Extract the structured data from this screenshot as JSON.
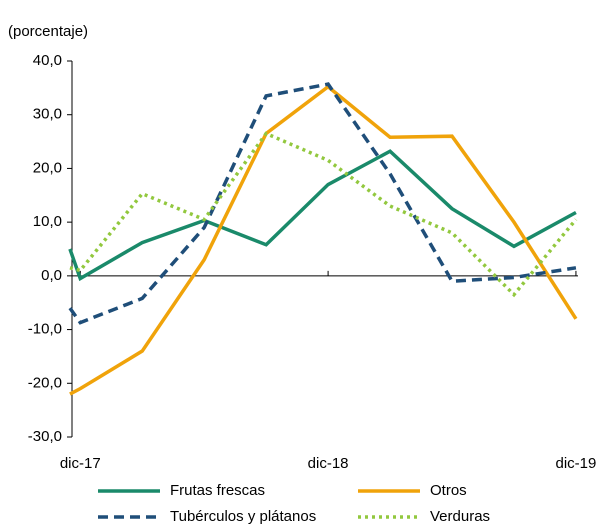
{
  "chart_data": {
    "type": "line",
    "y_label": "(porcentaje)",
    "x": [
      -0.5,
      0,
      3,
      6,
      9,
      12,
      15,
      18,
      21,
      24
    ],
    "xlim": [
      -0.4,
      24.1
    ],
    "xticks": [
      {
        "value": 0,
        "label": "dic-17"
      },
      {
        "value": 12,
        "label": "dic-18"
      },
      {
        "value": 24,
        "label": "dic-19"
      }
    ],
    "ylim": [
      -30,
      40
    ],
    "yticks": [
      {
        "value": 40,
        "label": "40,0"
      },
      {
        "value": 30,
        "label": "30,0"
      },
      {
        "value": 20,
        "label": "20,0"
      },
      {
        "value": 10,
        "label": "10,0"
      },
      {
        "value": 0,
        "label": "0,0"
      },
      {
        "value": -10,
        "label": "-10,0"
      },
      {
        "value": -20,
        "label": "-20,0"
      },
      {
        "value": -30,
        "label": "-30,0"
      }
    ],
    "series": [
      {
        "name": "Frutas frescas",
        "color": "#1a8a6a",
        "dash": "solid",
        "values": [
          5,
          -0.5,
          6.2,
          10.3,
          5.8,
          17,
          23.2,
          12.5,
          5.5,
          11.8
        ]
      },
      {
        "name": "Otros",
        "color": "#f0a30a",
        "dash": "solid",
        "values": [
          -22,
          -21,
          -14,
          3,
          26.5,
          35.2,
          25.8,
          26,
          10,
          -8
        ]
      },
      {
        "name": "Tubérculos y plátanos",
        "color": "#1f4e79",
        "dash": "dashed",
        "values": [
          -6,
          -8.7,
          -4.2,
          9,
          33.5,
          35.7,
          19,
          -1,
          -0.3,
          1.5
        ]
      },
      {
        "name": "Verduras",
        "color": "#92c83e",
        "dash": "dotted",
        "values": [
          1.5,
          1,
          15.3,
          10.5,
          26.5,
          21.5,
          13,
          8,
          -3.5,
          10.5
        ]
      }
    ]
  }
}
